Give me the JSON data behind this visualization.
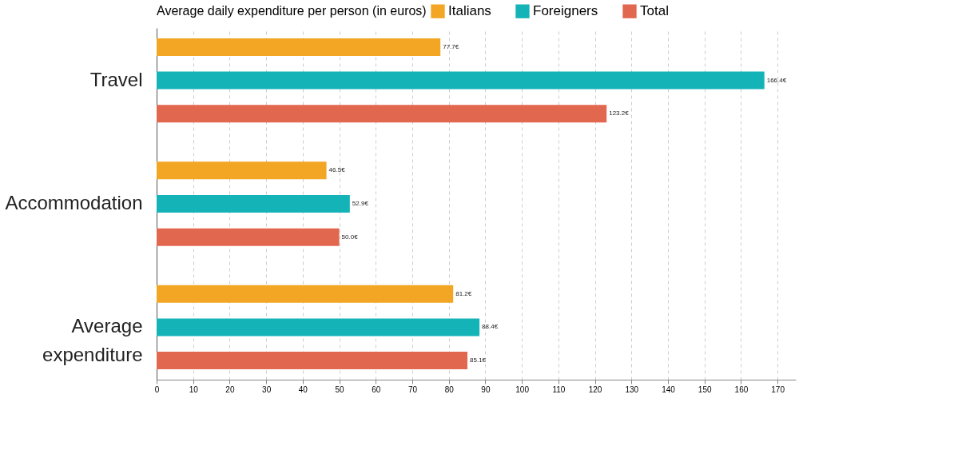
{
  "chart_data": {
    "type": "bar",
    "orientation": "horizontal",
    "legend_title": "Average daily expenditure per person (in euros)",
    "categories": [
      "Travel",
      "Accommodation",
      "Average expenditure"
    ],
    "series": [
      {
        "name": "Italians",
        "color": "#f2a623",
        "values": [
          77.7,
          46.5,
          81.2
        ],
        "value_labels": [
          "77.7€",
          "46.5€",
          "81.2€"
        ]
      },
      {
        "name": "Foreigners",
        "color": "#13b3b8",
        "values": [
          166.4,
          52.9,
          88.4
        ],
        "value_labels": [
          "166.4€",
          "52.9€",
          "88.4€"
        ]
      },
      {
        "name": "Total",
        "color": "#e2674f",
        "values": [
          123.2,
          50.0,
          85.1
        ],
        "value_labels": [
          "123.2€",
          "50.0€",
          "85.1€"
        ]
      }
    ],
    "xlim": [
      0,
      175
    ],
    "xticks": [
      0,
      10,
      20,
      30,
      40,
      50,
      60,
      70,
      80,
      90,
      100,
      110,
      120,
      130,
      140,
      150,
      160,
      170
    ],
    "grid": "x",
    "legend": "top"
  }
}
